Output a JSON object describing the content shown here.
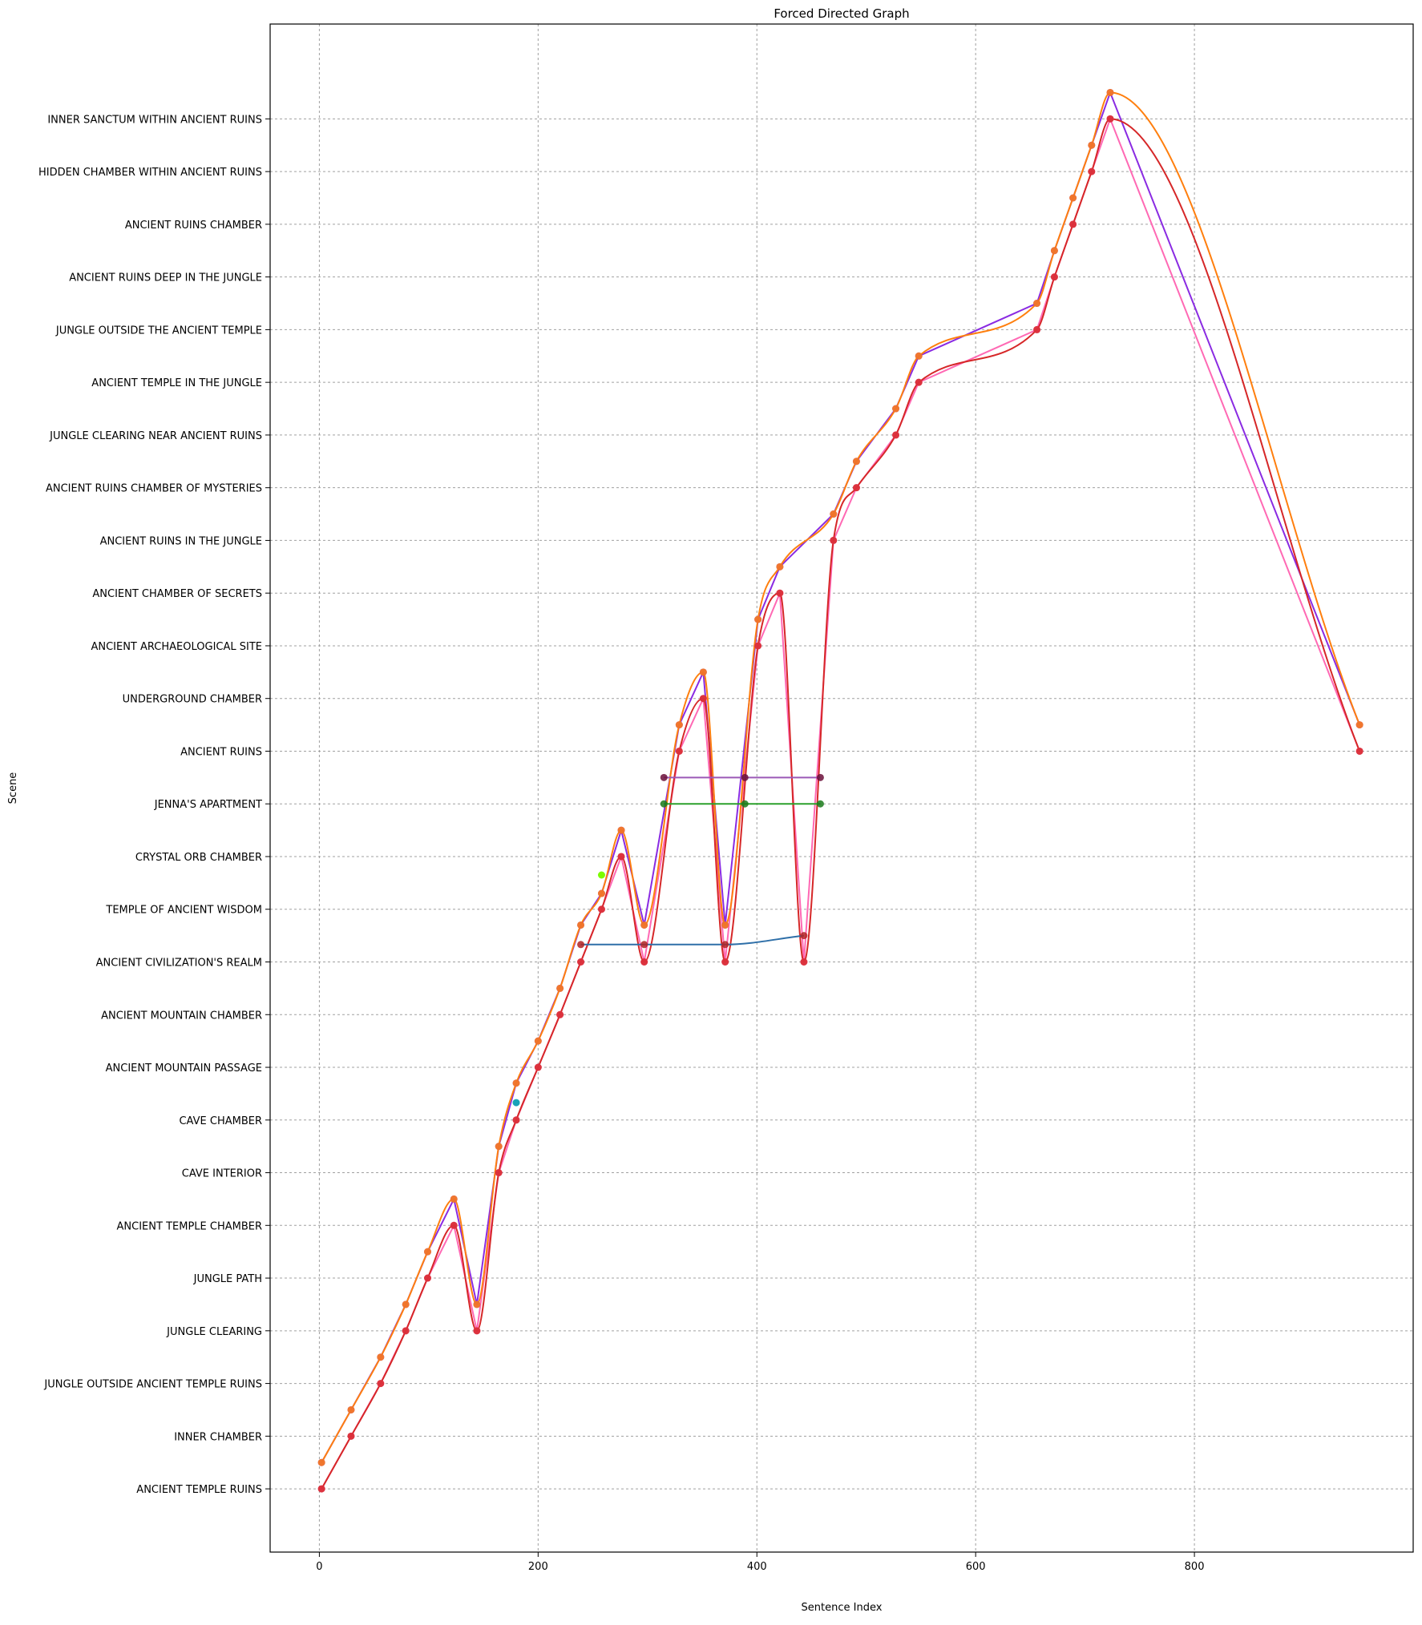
{
  "chart_data": {
    "type": "line",
    "title": "Forced Directed Graph",
    "xlabel": "Sentence Index",
    "ylabel": "Scene",
    "xlim": [
      -45,
      1000
    ],
    "ylim": [
      -1.2,
      27.8
    ],
    "x_ticks": [
      0,
      200,
      400,
      600,
      800
    ],
    "grid": true,
    "grid_style": "dotted",
    "legend": "none",
    "categories": [
      "ANCIENT TEMPLE RUINS",
      "INNER CHAMBER",
      "JUNGLE OUTSIDE ANCIENT TEMPLE RUINS",
      "JUNGLE CLEARING",
      "JUNGLE PATH",
      "ANCIENT TEMPLE CHAMBER",
      "CAVE INTERIOR",
      "CAVE CHAMBER",
      "ANCIENT MOUNTAIN PASSAGE",
      "ANCIENT MOUNTAIN CHAMBER",
      "ANCIENT CIVILIZATION'S REALM",
      "TEMPLE OF ANCIENT WISDOM",
      "CRYSTAL ORB CHAMBER",
      "JENNA'S APARTMENT",
      "ANCIENT RUINS",
      "UNDERGROUND CHAMBER",
      "ANCIENT ARCHAEOLOGICAL SITE",
      "ANCIENT CHAMBER OF SECRETS",
      "ANCIENT RUINS IN THE JUNGLE",
      "ANCIENT RUINS CHAMBER OF MYSTERIES",
      "JUNGLE CLEARING NEAR ANCIENT RUINS",
      "ANCIENT TEMPLE IN THE JUNGLE",
      "JUNGLE OUTSIDE THE ANCIENT TEMPLE",
      "ANCIENT RUINS DEEP IN THE JUNGLE",
      "ANCIENT RUINS CHAMBER",
      "HIDDEN CHAMBER WITHIN ANCIENT RUINS",
      "INNER SANCTUM WITHIN ANCIENT RUINS"
    ],
    "series": [
      {
        "color": "#8a2be2",
        "marker_color": "#8a2be2",
        "curve": "linear",
        "points": [
          [
            2,
            0.5
          ],
          [
            29,
            1.5
          ],
          [
            56,
            2.5
          ],
          [
            79,
            3.5
          ],
          [
            99,
            4.5
          ],
          [
            123,
            5.5
          ],
          [
            144,
            3.5
          ],
          [
            164,
            6.5
          ],
          [
            180,
            7.7
          ],
          [
            200,
            8.5
          ],
          [
            220,
            9.5
          ],
          [
            239,
            10.7
          ],
          [
            258,
            11.3
          ],
          [
            276,
            12.5
          ],
          [
            297,
            10.7
          ],
          [
            329,
            14.5
          ],
          [
            351,
            15.5
          ],
          [
            371,
            10.7
          ],
          [
            401,
            16.5
          ],
          [
            421,
            17.5
          ],
          [
            470,
            18.5
          ],
          [
            491,
            19.5
          ],
          [
            527,
            20.5
          ],
          [
            548,
            21.5
          ],
          [
            656,
            22.5
          ],
          [
            672,
            23.5
          ],
          [
            689,
            24.5
          ],
          [
            706,
            25.5
          ],
          [
            723,
            26.5
          ],
          [
            951,
            14.5
          ]
        ]
      },
      {
        "color": "#ff69b4",
        "marker_color": "#ff69b4",
        "curve": "linear",
        "points": [
          [
            2,
            0
          ],
          [
            29,
            1
          ],
          [
            56,
            2
          ],
          [
            79,
            3
          ],
          [
            99,
            4
          ],
          [
            123,
            5
          ],
          [
            144,
            3
          ],
          [
            164,
            6
          ],
          [
            180,
            7
          ],
          [
            200,
            8
          ],
          [
            220,
            9
          ],
          [
            239,
            10
          ],
          [
            258,
            11
          ],
          [
            276,
            12
          ],
          [
            297,
            10
          ],
          [
            329,
            14
          ],
          [
            351,
            15
          ],
          [
            371,
            10
          ],
          [
            401,
            16
          ],
          [
            421,
            17
          ],
          [
            443,
            10
          ],
          [
            470,
            18
          ],
          [
            491,
            19
          ],
          [
            527,
            20
          ],
          [
            548,
            21
          ],
          [
            656,
            22
          ],
          [
            672,
            23
          ],
          [
            689,
            24
          ],
          [
            706,
            25
          ],
          [
            723,
            26
          ],
          [
            951,
            14
          ]
        ]
      },
      {
        "color": "#ff7f0e",
        "marker_color": "#ff7f0e",
        "curve": "smooth",
        "points": [
          [
            2,
            0.5
          ],
          [
            29,
            1.5
          ],
          [
            56,
            2.5
          ],
          [
            79,
            3.5
          ],
          [
            99,
            4.5
          ],
          [
            123,
            5.5
          ],
          [
            144,
            3.5
          ],
          [
            164,
            6.5
          ],
          [
            180,
            7.7
          ],
          [
            200,
            8.5
          ],
          [
            220,
            9.5
          ],
          [
            239,
            10.7
          ],
          [
            258,
            11.3
          ],
          [
            276,
            12.5
          ],
          [
            297,
            10.7
          ],
          [
            329,
            14.5
          ],
          [
            351,
            15.5
          ],
          [
            371,
            10.7
          ],
          [
            401,
            16.5
          ],
          [
            421,
            17.5
          ],
          [
            470,
            18.5
          ],
          [
            491,
            19.5
          ],
          [
            527,
            20.5
          ],
          [
            548,
            21.5
          ],
          [
            656,
            22.5
          ],
          [
            672,
            23.5
          ],
          [
            689,
            24.5
          ],
          [
            706,
            25.5
          ],
          [
            723,
            26.5
          ],
          [
            951,
            14.5
          ]
        ]
      },
      {
        "color": "#d62728",
        "marker_color": "#d62728",
        "curve": "smooth",
        "points": [
          [
            2,
            0
          ],
          [
            29,
            1
          ],
          [
            56,
            2
          ],
          [
            79,
            3
          ],
          [
            99,
            4
          ],
          [
            123,
            5
          ],
          [
            144,
            3
          ],
          [
            164,
            6
          ],
          [
            180,
            7
          ],
          [
            200,
            8
          ],
          [
            220,
            9
          ],
          [
            239,
            10
          ],
          [
            258,
            11
          ],
          [
            276,
            12
          ],
          [
            297,
            10
          ],
          [
            329,
            14
          ],
          [
            351,
            15
          ],
          [
            371,
            10
          ],
          [
            401,
            16
          ],
          [
            421,
            17
          ],
          [
            443,
            10
          ],
          [
            470,
            18
          ],
          [
            491,
            19
          ],
          [
            527,
            20
          ],
          [
            548,
            21
          ],
          [
            656,
            22
          ],
          [
            672,
            23
          ],
          [
            689,
            24
          ],
          [
            706,
            25
          ],
          [
            723,
            26
          ],
          [
            951,
            14
          ]
        ]
      },
      {
        "color": "#9b59b6",
        "marker_color": "#6b0f3a",
        "curve": "linear",
        "points": [
          [
            315,
            13.5
          ],
          [
            389,
            13.5
          ],
          [
            458,
            13.5
          ]
        ]
      },
      {
        "color": "#2ca02c",
        "marker_color": "#1a7a1a",
        "curve": "linear",
        "points": [
          [
            315,
            13
          ],
          [
            389,
            13
          ],
          [
            458,
            13
          ]
        ]
      },
      {
        "color": "#2e6fa8",
        "marker_color": "#b22222",
        "curve": "smooth",
        "points": [
          [
            239,
            10.33
          ],
          [
            297,
            10.33
          ],
          [
            371,
            10.33
          ],
          [
            443,
            10.5
          ]
        ]
      }
    ],
    "isolated_points": [
      {
        "x": 258,
        "y": 11.65,
        "color": "#7cfc00"
      },
      {
        "x": 180,
        "y": 7.33,
        "color": "#17a2b8"
      }
    ]
  }
}
